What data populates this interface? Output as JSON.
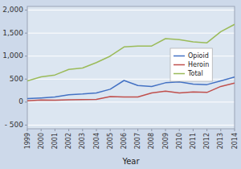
{
  "chart_data": {
    "type": "line",
    "x_label": "Year",
    "x": [
      1999,
      2000,
      2001,
      2002,
      2003,
      2004,
      2005,
      2006,
      2007,
      2008,
      2009,
      2010,
      2011,
      2012,
      2013,
      2014
    ],
    "xlim": [
      1999,
      2014
    ],
    "xticks": [
      1999,
      2000,
      2001,
      2002,
      2003,
      2004,
      2005,
      2006,
      2007,
      2008,
      2009,
      2010,
      2011,
      2012,
      2013,
      2014
    ],
    "ylim": [
      -580,
      2080
    ],
    "yticks": [
      {
        "value": -500,
        "label": "- 500"
      },
      0,
      500,
      {
        "value": 1000,
        "label": "1,000"
      },
      {
        "value": 1500,
        "label": "1,500"
      },
      {
        "value": 2000,
        "label": "2,000"
      }
    ],
    "grid": true,
    "legend": "right",
    "series": [
      {
        "name": "Opioid",
        "color": "#4472c4",
        "values": [
          75,
          90,
          110,
          160,
          175,
          200,
          280,
          470,
          360,
          340,
          420,
          440,
          390,
          380,
          460,
          545
        ]
      },
      {
        "name": "Heroin",
        "color": "#c0504d",
        "values": [
          30,
          45,
          40,
          50,
          55,
          60,
          120,
          110,
          110,
          200,
          240,
          200,
          220,
          210,
          340,
          415
        ]
      },
      {
        "name": "Total",
        "color": "#9bbb59",
        "values": [
          460,
          550,
          590,
          710,
          740,
          860,
          1000,
          1200,
          1220,
          1220,
          1380,
          1360,
          1310,
          1290,
          1530,
          1690
        ]
      }
    ]
  }
}
